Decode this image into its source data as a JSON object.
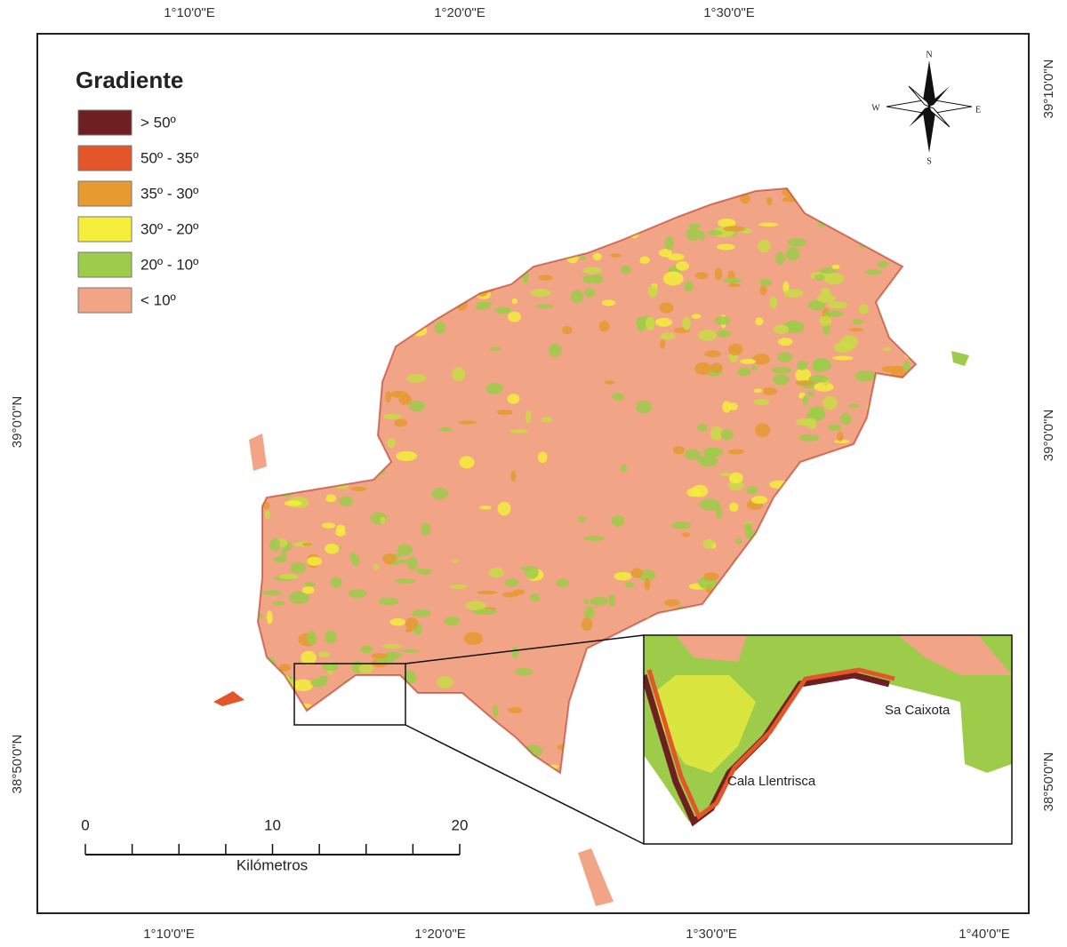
{
  "map": {
    "top_labels": [
      "1°10'0\"E",
      "1°20'0\"E",
      "1°30'0\"E"
    ],
    "bottom_labels": [
      "1°10'0\"E",
      "1°20'0\"E",
      "1°30'0\"E",
      "1°40'0\"E"
    ],
    "left_labels": [
      "39°0'0\"N",
      "38°50'0\"N"
    ],
    "right_labels": [
      "39°10'0\"N",
      "39°0'0\"N",
      "38°50'0\"N"
    ],
    "legend": {
      "title": "Gradiente",
      "items": [
        {
          "label": "> 50º",
          "color": "#6e1f22"
        },
        {
          "label": "50º - 35º",
          "color": "#e3562a"
        },
        {
          "label": "35º - 30º",
          "color": "#e69a30"
        },
        {
          "label": "30º - 20º",
          "color": "#f5ef3c"
        },
        {
          "label": "20º - 10º",
          "color": "#9ccc4a"
        },
        {
          "label": "< 10º",
          "color": "#f2a486"
        }
      ]
    },
    "compass": {
      "n": "N",
      "s": "S",
      "e": "E",
      "w": "W"
    },
    "scale": {
      "ticks": [
        0,
        10,
        20
      ],
      "unit": "Kilómetros"
    },
    "places": [
      "Sa Caixota",
      "Cala Llentrisca"
    ]
  }
}
